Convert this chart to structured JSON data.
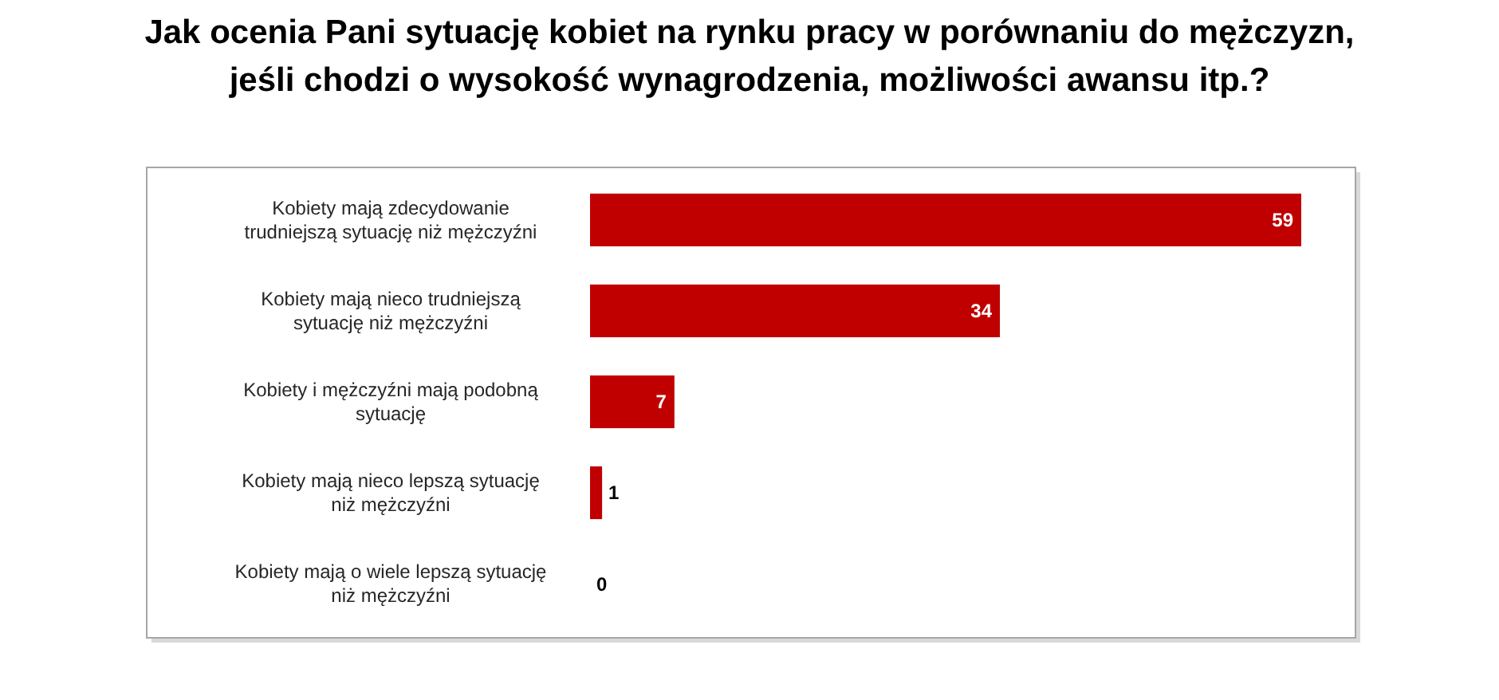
{
  "chart_data": {
    "type": "bar",
    "orientation": "horizontal",
    "title": "Jak ocenia Pani sytuację kobiet na rynku pracy w porównaniu do mężczyzn, jeśli chodzi o wysokość wynagrodzenia, możliwości awansu itp.?",
    "categories": [
      "Kobiety mają zdecydowanie trudniejszą sytuację niż mężczyźni",
      "Kobiety mają nieco trudniejszą sytuację niż mężczyźni",
      "Kobiety i mężczyźni mają podobną sytuację",
      "Kobiety mają nieco lepszą sytuację niż mężczyźni",
      "Kobiety mają o wiele lepszą sytuację niż mężczyźni"
    ],
    "values": [
      59,
      34,
      7,
      1,
      0
    ],
    "color": "#c00000",
    "data_labels": true
  }
}
